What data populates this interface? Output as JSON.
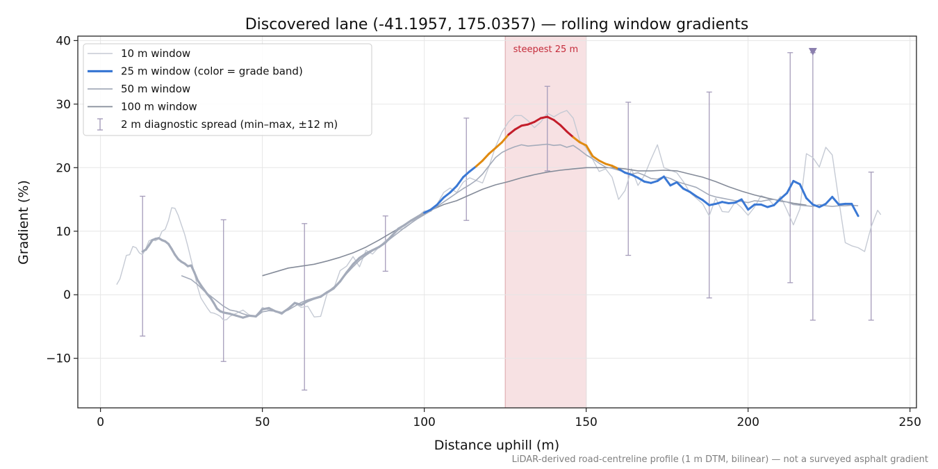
{
  "chart_data": {
    "type": "line",
    "title": "Discovered lane (-41.1957, 175.0357) — rolling window gradients",
    "xlabel": "Distance uphill (m)",
    "ylabel": "Gradient (%)",
    "footnote": "LiDAR-derived road-centreline profile (1 m DTM, bilinear) — not a surveyed asphalt gradient",
    "xlim": [
      -7,
      252
    ],
    "ylim": [
      -17.8,
      40.7
    ],
    "xticks": [
      0,
      50,
      100,
      150,
      200,
      250
    ],
    "yticks": [
      -10,
      0,
      10,
      20,
      30,
      40
    ],
    "xtick_labels": [
      "0",
      "50",
      "100",
      "150",
      "200",
      "250"
    ],
    "ytick_labels": [
      "−10",
      "0",
      "10",
      "20",
      "30",
      "40"
    ],
    "grid": true,
    "legend_position": "top-left",
    "legend": [
      {
        "label": "10 m window",
        "style": "thin-line",
        "color": "#c5cad4"
      },
      {
        "label": "25 m window (color = grade band)",
        "style": "thick-line",
        "color": "#3a78d4"
      },
      {
        "label": "50 m window",
        "style": "line",
        "color": "#a4abba"
      },
      {
        "label": "100 m window",
        "style": "line",
        "color": "#848b99"
      },
      {
        "label": "2 m diagnostic spread (min–max, ±12 m)",
        "style": "errorbar",
        "color": "#a59cba"
      }
    ],
    "highlight_band": {
      "x": [
        125,
        150
      ],
      "label": "steepest 25 m",
      "color": "#f0c8cc",
      "label_color": "#c42b3a"
    },
    "marker": {
      "x": 220,
      "y": 38.3,
      "shape": "triangle-down",
      "color": "#8b7fae"
    },
    "grade_band_colors": {
      "below_20": "#3a78d4",
      "20_to_25": "#e08a10",
      "above_25": "#c31d2a",
      "edge_ramp": "#a4abba"
    },
    "series": [
      {
        "name": "10 m window",
        "x": [
          5,
          6,
          7,
          8,
          9,
          10,
          11,
          12,
          13,
          14,
          15,
          16,
          17,
          18,
          19,
          20,
          21,
          22,
          23,
          24,
          25,
          26,
          27,
          28,
          29,
          30,
          31,
          32,
          33,
          34,
          35,
          36,
          37,
          38,
          39,
          40,
          42,
          44,
          46,
          48,
          50,
          52,
          54,
          56,
          58,
          60,
          62,
          64,
          66,
          68,
          70,
          72,
          74,
          76,
          78,
          80,
          82,
          84,
          86,
          88,
          90,
          92,
          94,
          96,
          98,
          100,
          102,
          104,
          106,
          108,
          110,
          112,
          114,
          116,
          118,
          120,
          122,
          124,
          126,
          128,
          130,
          132,
          134,
          136,
          138,
          140,
          142,
          144,
          146,
          148,
          150,
          152,
          154,
          156,
          158,
          160,
          162,
          164,
          166,
          168,
          170,
          172,
          174,
          176,
          178,
          180,
          182,
          184,
          186,
          188,
          190,
          192,
          194,
          196,
          198,
          200,
          202,
          204,
          206,
          208,
          210,
          212,
          214,
          216,
          218,
          220,
          222,
          224,
          226,
          228,
          230,
          232,
          234,
          236,
          238,
          240,
          241
        ],
        "values": [
          1.6,
          2.5,
          4.3,
          6.2,
          6.3,
          7.6,
          7.4,
          6.6,
          6.3,
          7.3,
          8.5,
          8.7,
          8.5,
          8.8,
          10.0,
          10.3,
          11.7,
          13.7,
          13.6,
          12.5,
          11.0,
          9.5,
          7.6,
          5.5,
          3.4,
          1.2,
          -0.5,
          -1.3,
          -2.1,
          -2.8,
          -2.9,
          -3.1,
          -3.4,
          -4.0,
          -3.9,
          -3.4,
          -2.9,
          -2.4,
          -3.2,
          -3.5,
          -2.0,
          -2.4,
          -2.6,
          -3.1,
          -2.2,
          -1.3,
          -2.0,
          -1.8,
          -3.5,
          -3.4,
          0.2,
          0.9,
          3.8,
          4.5,
          6.0,
          4.4,
          7.0,
          6.4,
          7.5,
          8.5,
          9.2,
          10.2,
          10.5,
          11.3,
          12.3,
          13.2,
          13.1,
          14.3,
          16.1,
          16.8,
          16.1,
          17.7,
          18.4,
          18.0,
          17.6,
          20.2,
          23.3,
          25.6,
          27.2,
          28.2,
          28.2,
          27.4,
          26.3,
          27.2,
          28.6,
          28.0,
          28.6,
          29.0,
          27.8,
          24.3,
          23.1,
          21.3,
          19.4,
          19.8,
          18.5,
          15.0,
          16.4,
          19.8,
          17.2,
          18.8,
          21.3,
          23.6,
          20.0,
          19.6,
          19.2,
          17.8,
          16.1,
          15.2,
          14.3,
          12.4,
          15.2,
          13.1,
          13.0,
          14.6,
          13.7,
          12.5,
          13.8,
          15.6,
          15.2,
          14.1,
          15.5,
          13.3,
          11.0,
          13.5,
          22.2,
          21.6,
          20.1,
          23.2,
          22.0,
          14.9,
          8.2,
          7.7,
          7.4,
          6.8,
          10.7,
          13.3,
          12.6
        ]
      },
      {
        "name": "25 m window (color = grade band)",
        "x": [
          13,
          14,
          15,
          16,
          17,
          18,
          19,
          20,
          21,
          22,
          23,
          24,
          25,
          26,
          27,
          28,
          29,
          30,
          31,
          32,
          33,
          34,
          35,
          36,
          37,
          38,
          39,
          40,
          42,
          44,
          46,
          48,
          50,
          52,
          54,
          56,
          58,
          60,
          62,
          64,
          66,
          68,
          70,
          72,
          74,
          76,
          78,
          80,
          82,
          84,
          86,
          88,
          90,
          92,
          94,
          96,
          98,
          100,
          102,
          104,
          106,
          108,
          110,
          112,
          114,
          116,
          118,
          120,
          122,
          124,
          126,
          128,
          130,
          132,
          134,
          136,
          138,
          140,
          142,
          144,
          146,
          148,
          150,
          152,
          154,
          156,
          158,
          160,
          162,
          164,
          166,
          168,
          170,
          172,
          174,
          176,
          178,
          180,
          182,
          184,
          186,
          188,
          190,
          192,
          194,
          196,
          198,
          200,
          202,
          204,
          206,
          208,
          210,
          212,
          214,
          216,
          218,
          220,
          222,
          224,
          226,
          228,
          230,
          232,
          234
        ],
        "values": [
          6.8,
          7.1,
          7.8,
          8.6,
          8.8,
          8.9,
          8.6,
          8.4,
          8.0,
          7.2,
          6.3,
          5.6,
          5.2,
          4.9,
          4.5,
          4.6,
          3.5,
          2.3,
          1.5,
          0.8,
          0.1,
          -0.5,
          -1.3,
          -2.2,
          -2.6,
          -2.8,
          -2.9,
          -3.0,
          -3.3,
          -3.6,
          -3.3,
          -3.4,
          -2.3,
          -2.1,
          -2.6,
          -2.9,
          -2.2,
          -1.3,
          -1.6,
          -1.0,
          -0.6,
          -0.3,
          0.4,
          1.0,
          2.1,
          3.5,
          4.8,
          5.8,
          6.5,
          7.0,
          7.5,
          8.2,
          9.3,
          10.4,
          11.0,
          11.7,
          12.3,
          12.9,
          13.4,
          14.2,
          15.3,
          16.1,
          17.1,
          18.5,
          19.4,
          20.2,
          21.1,
          22.2,
          23.1,
          24.0,
          25.2,
          26.0,
          26.6,
          26.8,
          27.2,
          27.8,
          28.0,
          27.5,
          26.7,
          25.7,
          24.8,
          24.0,
          23.5,
          21.8,
          21.1,
          20.6,
          20.3,
          19.8,
          19.2,
          18.9,
          18.4,
          17.8,
          17.6,
          17.9,
          18.6,
          17.2,
          17.7,
          16.7,
          16.2,
          15.5,
          14.9,
          14.1,
          14.3,
          14.6,
          14.4,
          14.5,
          15.0,
          13.4,
          14.2,
          14.2,
          13.8,
          14.1,
          15.1,
          16.0,
          17.9,
          17.4,
          15.2,
          14.2,
          13.8,
          14.3,
          15.4,
          14.2,
          14.3,
          14.3,
          12.4
        ]
      },
      {
        "name": "50 m window",
        "x": [
          25,
          26,
          28,
          30,
          32,
          34,
          36,
          38,
          40,
          42,
          44,
          46,
          48,
          50,
          52,
          54,
          56,
          58,
          60,
          62,
          64,
          66,
          68,
          70,
          72,
          74,
          76,
          78,
          80,
          82,
          84,
          86,
          88,
          90,
          92,
          94,
          96,
          98,
          100,
          102,
          104,
          106,
          108,
          110,
          112,
          114,
          116,
          118,
          120,
          122,
          124,
          126,
          128,
          130,
          132,
          134,
          136,
          138,
          140,
          142,
          144,
          146,
          148,
          150,
          152,
          154,
          156,
          158,
          160,
          162,
          164,
          166,
          168,
          170,
          172,
          174,
          176,
          178,
          180,
          182,
          184,
          186,
          188,
          190,
          192,
          194,
          196,
          198,
          200,
          202,
          204,
          206,
          208,
          210,
          212,
          214,
          216,
          218,
          220,
          222,
          224,
          226,
          228,
          230,
          232,
          234
        ],
        "values": [
          3.0,
          2.8,
          2.4,
          1.6,
          0.6,
          -0.2,
          -1.0,
          -1.8,
          -2.4,
          -2.6,
          -3.0,
          -3.3,
          -3.5,
          -2.7,
          -2.5,
          -2.6,
          -2.8,
          -2.4,
          -1.8,
          -1.2,
          -0.8,
          -0.5,
          -0.2,
          0.4,
          1.2,
          2.1,
          3.3,
          4.4,
          5.4,
          6.2,
          6.9,
          7.5,
          8.2,
          9.0,
          9.8,
          10.6,
          11.3,
          12.0,
          12.6,
          13.2,
          13.9,
          14.6,
          15.3,
          16.0,
          16.7,
          17.3,
          18.0,
          19.0,
          20.3,
          21.6,
          22.4,
          22.9,
          23.3,
          23.6,
          23.4,
          23.5,
          23.6,
          23.7,
          23.5,
          23.6,
          23.2,
          23.5,
          22.8,
          22.0,
          21.4,
          20.7,
          20.1,
          19.9,
          19.6,
          19.3,
          19.0,
          19.2,
          18.8,
          18.3,
          18.2,
          18.6,
          18.3,
          17.8,
          17.5,
          17.2,
          16.9,
          16.3,
          15.7,
          15.4,
          15.2,
          15.0,
          14.8,
          14.7,
          14.5,
          14.8,
          14.7,
          14.9,
          15.0,
          14.7,
          14.6,
          14.2,
          14.1,
          14.0,
          13.9,
          14.2,
          14.0,
          13.9,
          14.0,
          14.0,
          14.1,
          14.0
        ]
      },
      {
        "name": "100 m window",
        "x": [
          50,
          54,
          58,
          62,
          66,
          70,
          74,
          78,
          82,
          86,
          90,
          94,
          98,
          102,
          106,
          110,
          114,
          118,
          122,
          126,
          130,
          134,
          138,
          142,
          146,
          150,
          154,
          158,
          162,
          166,
          170,
          174,
          178,
          182,
          186,
          190,
          194,
          198,
          202,
          206,
          210,
          214,
          218
        ],
        "values": [
          3.0,
          3.6,
          4.2,
          4.5,
          4.8,
          5.3,
          5.9,
          6.6,
          7.5,
          8.6,
          9.8,
          11.0,
          12.2,
          13.3,
          14.2,
          14.8,
          15.7,
          16.6,
          17.3,
          17.8,
          18.4,
          18.9,
          19.3,
          19.6,
          19.8,
          20.0,
          20.0,
          20.0,
          19.8,
          19.5,
          19.5,
          19.6,
          19.5,
          19.0,
          18.5,
          17.8,
          17.0,
          16.3,
          15.7,
          15.2,
          14.8,
          14.4,
          14.1
        ]
      }
    ],
    "errorbars": {
      "name": "2 m diagnostic spread (min–max, ±12 m)",
      "x": [
        13,
        38,
        63,
        88,
        113,
        138,
        163,
        188,
        213,
        220,
        238
      ],
      "min": [
        -6.5,
        -10.5,
        -15.0,
        3.7,
        11.7,
        19.5,
        6.2,
        -0.5,
        1.9,
        -4.0,
        -4.0
      ],
      "max": [
        15.5,
        11.8,
        11.2,
        12.4,
        27.8,
        32.8,
        30.3,
        31.9,
        38.1,
        38.1,
        19.3
      ]
    }
  }
}
